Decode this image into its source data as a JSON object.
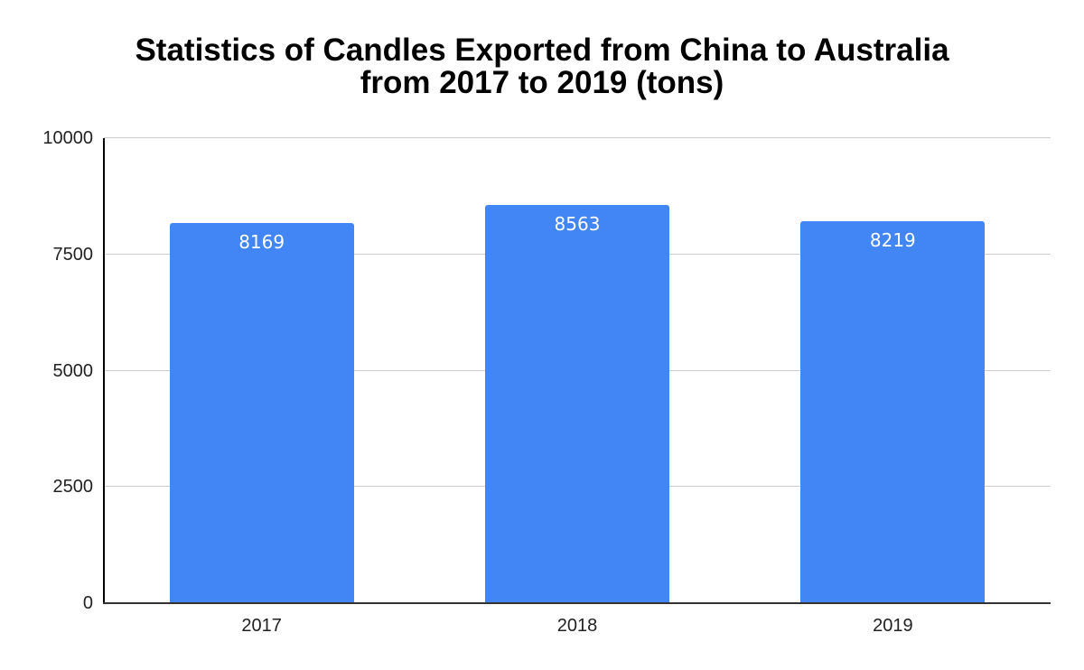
{
  "chart_data": {
    "type": "bar",
    "title": "Statistics of Candles Exported from China to Australia from 2017 to 2019 (tons)",
    "title_lines": [
      "Statistics of Candles Exported from China to Australia",
      "from 2017 to 2019 (tons)"
    ],
    "categories": [
      "2017",
      "2018",
      "2019"
    ],
    "values": [
      8169,
      8563,
      8219
    ],
    "data_labels": [
      "8169",
      "8563",
      "8219"
    ],
    "xlabel": "",
    "ylabel": "",
    "ylim": [
      0,
      10000
    ],
    "yticks": [
      0,
      2500,
      5000,
      7500,
      10000
    ],
    "ytick_labels": [
      "0",
      "2500",
      "5000",
      "7500",
      "10000"
    ],
    "grid": true,
    "legend": null,
    "bar_color": "#4285F4"
  }
}
